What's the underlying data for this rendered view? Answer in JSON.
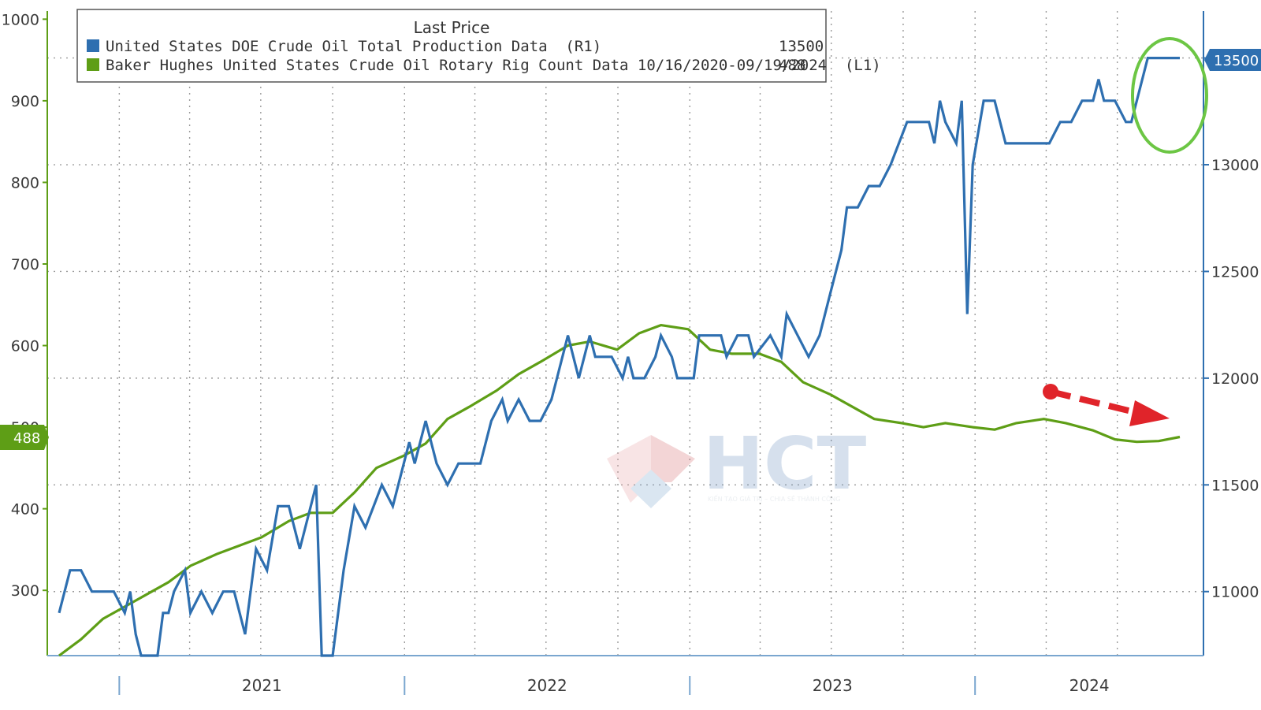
{
  "colors": {
    "production": "#2e6fb0",
    "rigs": "#5e9e16",
    "grid": "#9a9a9a",
    "highlight_circle": "#6cc644",
    "arrow": "#e0242a"
  },
  "legend": {
    "title": "Last Price",
    "entries": [
      {
        "label": "United States DOE Crude Oil Total Production Data  (R1)",
        "last": "13500"
      },
      {
        "label": "Baker Hughes United States Crude Oil Rotary Rig Count Data 10/16/2020-09/19/2024  (L1)",
        "last": "488"
      }
    ]
  },
  "badges": {
    "left": "488",
    "right": "13500"
  },
  "watermark": {
    "text": "HCT",
    "sub": "KIẾN TẠO GIÁ TRỊ – CHIA SẺ THÀNH CÔNG"
  },
  "chart_data": {
    "type": "line",
    "x_range": [
      "2020-10-16",
      "2024-09-19"
    ],
    "x_ticks": [
      "2021",
      "2022",
      "2023",
      "2024"
    ],
    "y_left": {
      "ticks": [
        300,
        400,
        500,
        600,
        700,
        800,
        900,
        1000
      ],
      "range": [
        220,
        1010
      ]
    },
    "y_right": {
      "ticks": [
        11000,
        11500,
        12000,
        12500,
        13000,
        13500
      ],
      "range": [
        10700,
        13720
      ]
    },
    "grid": true,
    "legend_position": "top",
    "series": [
      {
        "name": "United States DOE Crude Oil Total Production Data",
        "axis": "right",
        "points": [
          [
            "2020-10-16",
            10900
          ],
          [
            "2020-10-30",
            11100
          ],
          [
            "2020-11-13",
            11100
          ],
          [
            "2020-11-27",
            11000
          ],
          [
            "2020-12-11",
            11000
          ],
          [
            "2020-12-25",
            11000
          ],
          [
            "2021-01-08",
            10900
          ],
          [
            "2021-01-15",
            11000
          ],
          [
            "2021-01-22",
            10800
          ],
          [
            "2021-01-29",
            10700
          ],
          [
            "2021-02-12",
            10700
          ],
          [
            "2021-02-19",
            10700
          ],
          [
            "2021-02-26",
            10900
          ],
          [
            "2021-03-05",
            10900
          ],
          [
            "2021-03-12",
            11000
          ],
          [
            "2021-03-26",
            11100
          ],
          [
            "2021-04-02",
            10900
          ],
          [
            "2021-04-16",
            11000
          ],
          [
            "2021-04-30",
            10900
          ],
          [
            "2021-05-14",
            11000
          ],
          [
            "2021-05-28",
            11000
          ],
          [
            "2021-06-11",
            10800
          ],
          [
            "2021-06-25",
            11200
          ],
          [
            "2021-07-09",
            11100
          ],
          [
            "2021-07-23",
            11400
          ],
          [
            "2021-08-06",
            11400
          ],
          [
            "2021-08-20",
            11200
          ],
          [
            "2021-09-03",
            11400
          ],
          [
            "2021-09-10",
            11500
          ],
          [
            "2021-09-17",
            10700
          ],
          [
            "2021-09-24",
            10700
          ],
          [
            "2021-10-01",
            10700
          ],
          [
            "2021-10-15",
            11100
          ],
          [
            "2021-10-29",
            11400
          ],
          [
            "2021-11-12",
            11300
          ],
          [
            "2021-12-03",
            11500
          ],
          [
            "2021-12-17",
            11400
          ],
          [
            "2022-01-07",
            11700
          ],
          [
            "2022-01-14",
            11600
          ],
          [
            "2022-01-28",
            11800
          ],
          [
            "2022-02-11",
            11600
          ],
          [
            "2022-02-25",
            11500
          ],
          [
            "2022-03-11",
            11600
          ],
          [
            "2022-03-25",
            11600
          ],
          [
            "2022-04-08",
            11600
          ],
          [
            "2022-04-22",
            11800
          ],
          [
            "2022-05-06",
            11900
          ],
          [
            "2022-05-13",
            11800
          ],
          [
            "2022-05-27",
            11900
          ],
          [
            "2022-06-10",
            11800
          ],
          [
            "2022-06-24",
            11800
          ],
          [
            "2022-07-08",
            11900
          ],
          [
            "2022-07-15",
            12000
          ],
          [
            "2022-07-29",
            12200
          ],
          [
            "2022-08-05",
            12100
          ],
          [
            "2022-08-12",
            12000
          ],
          [
            "2022-08-26",
            12200
          ],
          [
            "2022-09-02",
            12100
          ],
          [
            "2022-09-09",
            12100
          ],
          [
            "2022-09-23",
            12100
          ],
          [
            "2022-10-07",
            12000
          ],
          [
            "2022-10-14",
            12100
          ],
          [
            "2022-10-21",
            12000
          ],
          [
            "2022-11-04",
            12000
          ],
          [
            "2022-11-18",
            12100
          ],
          [
            "2022-11-25",
            12200
          ],
          [
            "2022-12-09",
            12100
          ],
          [
            "2022-12-16",
            12000
          ],
          [
            "2023-01-06",
            12000
          ],
          [
            "2023-01-13",
            12200
          ],
          [
            "2023-01-27",
            12200
          ],
          [
            "2023-02-10",
            12200
          ],
          [
            "2023-02-17",
            12100
          ],
          [
            "2023-03-03",
            12200
          ],
          [
            "2023-03-17",
            12200
          ],
          [
            "2023-03-24",
            12100
          ],
          [
            "2023-04-14",
            12200
          ],
          [
            "2023-04-28",
            12100
          ],
          [
            "2023-05-05",
            12300
          ],
          [
            "2023-05-19",
            12200
          ],
          [
            "2023-06-02",
            12100
          ],
          [
            "2023-06-16",
            12200
          ],
          [
            "2023-06-30",
            12400
          ],
          [
            "2023-07-14",
            12600
          ],
          [
            "2023-07-21",
            12800
          ],
          [
            "2023-08-04",
            12800
          ],
          [
            "2023-08-18",
            12900
          ],
          [
            "2023-09-01",
            12900
          ],
          [
            "2023-09-15",
            13000
          ],
          [
            "2023-10-06",
            13200
          ],
          [
            "2023-10-20",
            13200
          ],
          [
            "2023-11-03",
            13200
          ],
          [
            "2023-11-10",
            13100
          ],
          [
            "2023-11-17",
            13300
          ],
          [
            "2023-11-24",
            13200
          ],
          [
            "2023-12-08",
            13100
          ],
          [
            "2023-12-15",
            13300
          ],
          [
            "2023-12-22",
            12300
          ],
          [
            "2023-12-29",
            13000
          ],
          [
            "2024-01-12",
            13300
          ],
          [
            "2024-01-26",
            13300
          ],
          [
            "2024-02-09",
            13100
          ],
          [
            "2024-02-23",
            13100
          ],
          [
            "2024-03-08",
            13100
          ],
          [
            "2024-03-22",
            13100
          ],
          [
            "2024-04-05",
            13100
          ],
          [
            "2024-04-19",
            13200
          ],
          [
            "2024-05-03",
            13200
          ],
          [
            "2024-05-17",
            13300
          ],
          [
            "2024-05-31",
            13300
          ],
          [
            "2024-06-07",
            13400
          ],
          [
            "2024-06-14",
            13300
          ],
          [
            "2024-06-28",
            13300
          ],
          [
            "2024-07-12",
            13200
          ],
          [
            "2024-07-19",
            13200
          ],
          [
            "2024-08-09",
            13500
          ],
          [
            "2024-08-23",
            13500
          ],
          [
            "2024-09-06",
            13500
          ],
          [
            "2024-09-19",
            13500
          ]
        ]
      },
      {
        "name": "Baker Hughes United States Crude Oil Rotary Rig Count Data",
        "axis": "left",
        "points": [
          [
            "2020-10-16",
            220
          ],
          [
            "2020-11-13",
            240
          ],
          [
            "2020-12-11",
            265
          ],
          [
            "2021-01-08",
            280
          ],
          [
            "2021-02-05",
            295
          ],
          [
            "2021-03-05",
            310
          ],
          [
            "2021-04-02",
            330
          ],
          [
            "2021-05-07",
            345
          ],
          [
            "2021-06-04",
            355
          ],
          [
            "2021-07-02",
            365
          ],
          [
            "2021-08-06",
            385
          ],
          [
            "2021-09-03",
            395
          ],
          [
            "2021-10-01",
            395
          ],
          [
            "2021-10-29",
            420
          ],
          [
            "2021-11-26",
            450
          ],
          [
            "2021-12-31",
            465
          ],
          [
            "2022-01-28",
            480
          ],
          [
            "2022-02-25",
            510
          ],
          [
            "2022-03-25",
            525
          ],
          [
            "2022-04-29",
            545
          ],
          [
            "2022-05-27",
            565
          ],
          [
            "2022-06-24",
            580
          ],
          [
            "2022-07-29",
            600
          ],
          [
            "2022-08-26",
            605
          ],
          [
            "2022-09-30",
            595
          ],
          [
            "2022-10-28",
            615
          ],
          [
            "2022-11-25",
            625
          ],
          [
            "2022-12-30",
            620
          ],
          [
            "2023-01-27",
            595
          ],
          [
            "2023-02-24",
            590
          ],
          [
            "2023-03-31",
            590
          ],
          [
            "2023-04-28",
            580
          ],
          [
            "2023-05-26",
            555
          ],
          [
            "2023-06-30",
            540
          ],
          [
            "2023-07-28",
            525
          ],
          [
            "2023-08-25",
            510
          ],
          [
            "2023-09-29",
            505
          ],
          [
            "2023-10-27",
            500
          ],
          [
            "2023-11-24",
            505
          ],
          [
            "2023-12-29",
            500
          ],
          [
            "2024-01-26",
            497
          ],
          [
            "2024-02-23",
            505
          ],
          [
            "2024-03-29",
            510
          ],
          [
            "2024-04-26",
            505
          ],
          [
            "2024-05-31",
            496
          ],
          [
            "2024-06-28",
            485
          ],
          [
            "2024-07-26",
            482
          ],
          [
            "2024-08-23",
            483
          ],
          [
            "2024-09-19",
            488
          ]
        ]
      }
    ]
  }
}
